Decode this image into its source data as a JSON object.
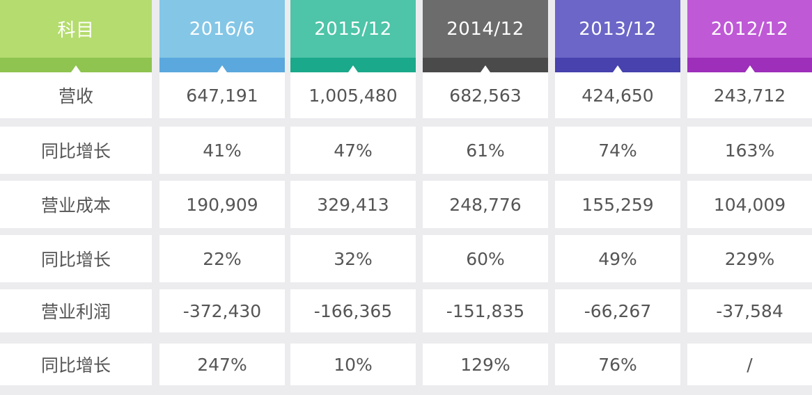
{
  "chart_data": {
    "type": "table",
    "columns": [
      {
        "label": "科目",
        "main": "#b5dc6f",
        "band": "#8ec44f"
      },
      {
        "label": "2016/6",
        "main": "#84c6e6",
        "band": "#5aa8dd"
      },
      {
        "label": "2015/12",
        "main": "#4ec4a8",
        "band": "#1aa98a"
      },
      {
        "label": "2014/12",
        "main": "#6c6c6c",
        "band": "#4a4a4a"
      },
      {
        "label": "2013/12",
        "main": "#6b66c7",
        "band": "#4742ae"
      },
      {
        "label": "2012/12",
        "main": "#bf59d6",
        "band": "#9d2fba"
      }
    ],
    "rows": [
      {
        "cells": [
          "营收",
          "647,191",
          "1,005,480",
          "682,563",
          "424,650",
          "243,712"
        ]
      },
      {
        "cells": [
          "同比增长",
          "41%",
          "47%",
          "61%",
          "74%",
          "163%"
        ]
      },
      {
        "cells": [
          "营业成本",
          "190,909",
          "329,413",
          "248,776",
          "155,259",
          "104,009"
        ]
      },
      {
        "cells": [
          "同比增长",
          "22%",
          "32%",
          "60%",
          "49%",
          "229%"
        ]
      },
      {
        "cells": [
          "营业利润",
          "-372,430",
          "-166,365",
          "-151,835",
          "-66,267",
          "-37,584"
        ]
      },
      {
        "cells": [
          "同比增长",
          "247%",
          "10%",
          "129%",
          "76%",
          "/"
        ]
      }
    ]
  }
}
